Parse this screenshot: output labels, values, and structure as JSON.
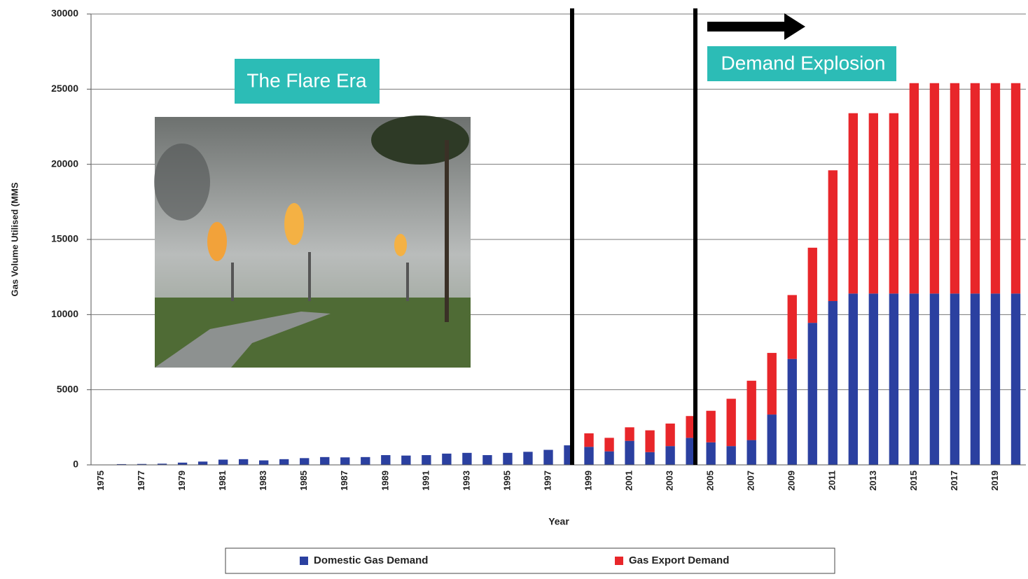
{
  "chart_data": {
    "type": "stacked_bar",
    "annotations": [
      "The Flare Era",
      "Demand Explosion"
    ],
    "x_label": "Year",
    "y_label": "Gas Volume Utilised (MMS",
    "categories": [
      "1975",
      null,
      "1977",
      null,
      "1979",
      null,
      "1981",
      null,
      "1983",
      null,
      "1985",
      null,
      "1987",
      null,
      "1989",
      null,
      "1991",
      null,
      "1993",
      null,
      "1995",
      null,
      "1997",
      null,
      "1999",
      null,
      "2001",
      null,
      "2003",
      null,
      "2005",
      null,
      "2007",
      null,
      "2009",
      null,
      "2011",
      null,
      "2013",
      null,
      "2015",
      null,
      "2017",
      null,
      "2019",
      null
    ],
    "series": [
      {
        "name": "Domestic Gas Demand",
        "color": "#2b40a0",
        "values": [
          20,
          50,
          60,
          80,
          150,
          220,
          350,
          380,
          300,
          380,
          450,
          520,
          500,
          520,
          650,
          620,
          650,
          750,
          800,
          650,
          800,
          870,
          1000,
          1300,
          1200,
          900,
          1600,
          850,
          1250,
          1800,
          1500,
          1250,
          1650,
          3350,
          7050,
          9450,
          10900,
          11400,
          11400,
          11400,
          11400,
          11400,
          11400,
          11400,
          11400,
          11400
        ]
      },
      {
        "name": "Gas Export Demand",
        "color": "#e8262a",
        "values": [
          0,
          0,
          0,
          0,
          0,
          0,
          0,
          0,
          0,
          0,
          0,
          0,
          0,
          0,
          0,
          0,
          0,
          0,
          0,
          0,
          0,
          0,
          0,
          0,
          900,
          900,
          900,
          1450,
          1500,
          1450,
          2100,
          3150,
          3950,
          4100,
          4250,
          5000,
          8700,
          12000,
          12000,
          12000,
          14000,
          14000,
          14000,
          14000,
          14000,
          14000
        ]
      }
    ],
    "ylim": [
      0,
      30000
    ],
    "yticks": [
      0,
      5000,
      10000,
      15000,
      20000,
      25000,
      30000
    ],
    "grid": true
  }
}
